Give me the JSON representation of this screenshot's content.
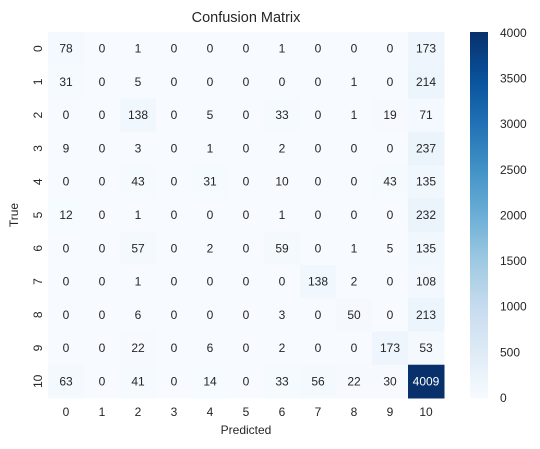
{
  "chart_data": {
    "type": "heatmap",
    "title": "Confusion Matrix",
    "xlabel": "Predicted",
    "ylabel": "True",
    "x_categories": [
      "0",
      "1",
      "2",
      "3",
      "4",
      "5",
      "6",
      "7",
      "8",
      "9",
      "10"
    ],
    "y_categories": [
      "0",
      "1",
      "2",
      "3",
      "4",
      "5",
      "6",
      "7",
      "8",
      "9",
      "10"
    ],
    "values": [
      [
        78,
        0,
        1,
        0,
        0,
        0,
        1,
        0,
        0,
        0,
        173
      ],
      [
        31,
        0,
        5,
        0,
        0,
        0,
        0,
        0,
        1,
        0,
        214
      ],
      [
        0,
        0,
        138,
        0,
        5,
        0,
        33,
        0,
        1,
        19,
        71
      ],
      [
        9,
        0,
        3,
        0,
        1,
        0,
        2,
        0,
        0,
        0,
        237
      ],
      [
        0,
        0,
        43,
        0,
        31,
        0,
        10,
        0,
        0,
        43,
        135
      ],
      [
        12,
        0,
        1,
        0,
        0,
        0,
        1,
        0,
        0,
        0,
        232
      ],
      [
        0,
        0,
        57,
        0,
        2,
        0,
        59,
        0,
        1,
        5,
        135
      ],
      [
        0,
        0,
        1,
        0,
        0,
        0,
        0,
        138,
        2,
        0,
        108
      ],
      [
        0,
        0,
        6,
        0,
        0,
        0,
        3,
        0,
        50,
        0,
        213
      ],
      [
        0,
        0,
        22,
        0,
        6,
        0,
        2,
        0,
        0,
        173,
        53
      ],
      [
        63,
        0,
        41,
        0,
        14,
        0,
        33,
        56,
        22,
        30,
        4009
      ]
    ],
    "colorbar": {
      "min": 0,
      "max": 4009,
      "ticks": [
        0,
        500,
        1000,
        1500,
        2000,
        2500,
        3000,
        3500,
        4000
      ],
      "colormap": "Blues"
    },
    "grid": false
  }
}
